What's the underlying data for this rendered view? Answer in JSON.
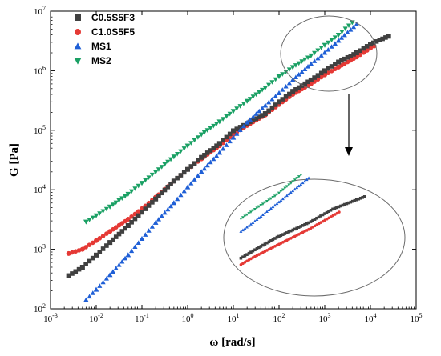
{
  "chart_data": {
    "type": "scatter",
    "xscale": "log",
    "yscale": "log",
    "xlim": [
      0.001,
      100000
    ],
    "ylim": [
      100,
      10000000
    ],
    "xlabel": "ω [rad/s]",
    "ylabel": "G [Pa]",
    "legend_position": "top-left",
    "x_ticks": [
      {
        "base": "10",
        "exp": "-3",
        "value": 0.001
      },
      {
        "base": "10",
        "exp": "-2",
        "value": 0.01
      },
      {
        "base": "10",
        "exp": "-1",
        "value": 0.1
      },
      {
        "base": "10",
        "exp": "0",
        "value": 1
      },
      {
        "base": "10",
        "exp": "1",
        "value": 10
      },
      {
        "base": "10",
        "exp": "2",
        "value": 100
      },
      {
        "base": "10",
        "exp": "3",
        "value": 1000
      },
      {
        "base": "10",
        "exp": "4",
        "value": 10000
      },
      {
        "base": "10",
        "exp": "5",
        "value": 100000
      }
    ],
    "y_ticks": [
      {
        "base": "10",
        "exp": "2",
        "value": 100
      },
      {
        "base": "10",
        "exp": "3",
        "value": 1000
      },
      {
        "base": "10",
        "exp": "4",
        "value": 10000
      },
      {
        "base": "10",
        "exp": "5",
        "value": 100000
      },
      {
        "base": "10",
        "exp": "6",
        "value": 1000000
      },
      {
        "base": "10",
        "exp": "7",
        "value": 10000000
      }
    ],
    "series": [
      {
        "name": "C0.5S5F3",
        "color": "#404040",
        "marker": "square",
        "x": [
          0.0025,
          0.005,
          0.01,
          0.02,
          0.05,
          0.1,
          0.2,
          0.5,
          1,
          2,
          5,
          10,
          20,
          50,
          100,
          200,
          500,
          1000,
          2000,
          5000,
          10000,
          25000
        ],
        "y": [
          360,
          500,
          800,
          1300,
          2500,
          4200,
          7000,
          14000,
          22000,
          35000,
          60000,
          98000,
          130000,
          190000,
          300000,
          450000,
          700000,
          1000000,
          1400000,
          2000000,
          2800000,
          3800000
        ]
      },
      {
        "name": "C1.0S5F5",
        "color": "#e53935",
        "marker": "circle",
        "x": [
          0.0025,
          0.005,
          0.01,
          0.02,
          0.05,
          0.1,
          0.2,
          0.5,
          1,
          2,
          5,
          10,
          20,
          50,
          100,
          200,
          500,
          1000,
          2000,
          5000,
          12000
        ],
        "y": [
          850,
          1000,
          1400,
          2000,
          3200,
          4800,
          7500,
          14000,
          22000,
          33000,
          55000,
          85000,
          120000,
          180000,
          270000,
          400000,
          600000,
          850000,
          1150000,
          1700000,
          2600000
        ]
      },
      {
        "name": "MS1",
        "color": "#1f5fd6",
        "marker": "triangle-up",
        "x": [
          0.006,
          0.01,
          0.02,
          0.05,
          0.1,
          0.2,
          0.5,
          1,
          2,
          5,
          10,
          20,
          50,
          100,
          200,
          500,
          1000,
          2000,
          5000
        ],
        "y": [
          140,
          210,
          370,
          800,
          1500,
          2800,
          6000,
          11000,
          20000,
          42000,
          75000,
          135000,
          260000,
          420000,
          700000,
          1300000,
          2000000,
          3200000,
          6000000
        ]
      },
      {
        "name": "MS2",
        "color": "#1aa064",
        "marker": "triangle-down",
        "x": [
          0.006,
          0.01,
          0.02,
          0.05,
          0.1,
          0.2,
          0.5,
          1,
          2,
          5,
          10,
          20,
          50,
          100,
          200,
          500,
          1000,
          2000,
          4000
        ],
        "y": [
          2900,
          3700,
          5200,
          8500,
          13000,
          20000,
          36000,
          55000,
          85000,
          140000,
          210000,
          310000,
          520000,
          800000,
          1150000,
          1800000,
          2700000,
          4000000,
          6500000
        ]
      }
    ],
    "annotations": [
      {
        "type": "ellipse",
        "label": "",
        "x_range": [
          700,
          40000
        ],
        "y_range": [
          900000,
          10000000
        ]
      },
      {
        "type": "arrow",
        "label": ""
      },
      {
        "type": "inset-ellipse",
        "label": ""
      }
    ]
  }
}
